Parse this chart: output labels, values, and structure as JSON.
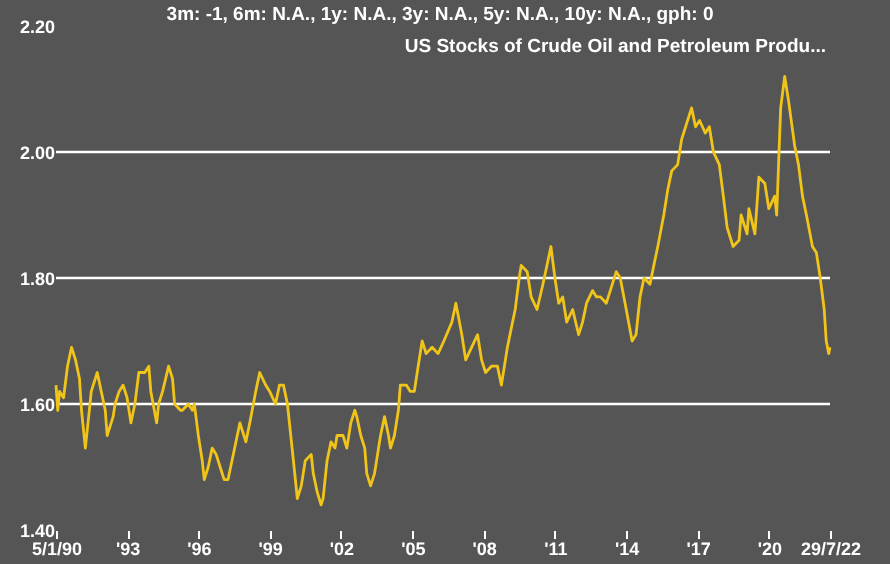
{
  "chart_data": {
    "type": "line",
    "title": "US Stocks of Crude Oil and Petroleum Produ...",
    "annotations": [
      "3m: -1,   6m: N.A.,   1y: N.A.,   3y: N.A.,   5y: N.A.,   10y: N.A.,   gph: 0"
    ],
    "xlim": [
      "1990-01-05",
      "2022-07-29"
    ],
    "xticks": [
      {
        "value": "1990-01-05",
        "label": "5/1/90"
      },
      {
        "value": "1993-01-01",
        "label": "'93"
      },
      {
        "value": "1996-01-01",
        "label": "'96"
      },
      {
        "value": "1999-01-01",
        "label": "'99"
      },
      {
        "value": "2002-01-01",
        "label": "'02"
      },
      {
        "value": "2005-01-01",
        "label": "'05"
      },
      {
        "value": "2008-01-01",
        "label": "'08"
      },
      {
        "value": "2011-01-01",
        "label": "'11"
      },
      {
        "value": "2014-01-01",
        "label": "'14"
      },
      {
        "value": "2017-01-01",
        "label": "'17"
      },
      {
        "value": "2020-01-01",
        "label": "'20"
      },
      {
        "value": "2022-07-29",
        "label": "29/7/22"
      }
    ],
    "ylim": [
      1.4,
      2.2
    ],
    "yticks": [
      {
        "value": 1.4,
        "label": "1.40"
      },
      {
        "value": 1.6,
        "label": "1.60"
      },
      {
        "value": 1.8,
        "label": "1.80"
      },
      {
        "value": 2.0,
        "label": "2.00"
      },
      {
        "value": 2.2,
        "label": "2.20"
      }
    ],
    "grid": "y",
    "series": [
      {
        "color": "#f0c419",
        "x": [
          "1990-01-05",
          "1990-02",
          "1990-03",
          "1990-05",
          "1990-07",
          "1990-09",
          "1990-11",
          "1991-01",
          "1991-02",
          "1991-04",
          "1991-06",
          "1991-07",
          "1991-10",
          "1991-12",
          "1992-02",
          "1992-03",
          "1992-06",
          "1992-07",
          "1992-09",
          "1992-11",
          "1993-01",
          "1993-03",
          "1993-05",
          "1993-07",
          "1993-08",
          "1993-10",
          "1993-12",
          "1994-01",
          "1994-04",
          "1994-05",
          "1994-07",
          "1994-10",
          "1994-12",
          "1995-01",
          "1995-04",
          "1995-05",
          "1995-08",
          "1995-10",
          "1995-11",
          "1996-01",
          "1996-03",
          "1996-04",
          "1996-06",
          "1996-08",
          "1996-10",
          "1996-12",
          "1997-02",
          "1997-04",
          "1997-06",
          "1997-08",
          "1997-10",
          "1997-12",
          "1998-01",
          "1998-03",
          "1998-06",
          "1998-08",
          "1998-11",
          "1999-01",
          "1999-04",
          "1999-06",
          "1999-08",
          "1999-10",
          "2000-01",
          "2000-03",
          "2000-05",
          "2000-07",
          "2000-10",
          "2000-11",
          "2001-01",
          "2001-03",
          "2001-04",
          "2001-06",
          "2001-08",
          "2001-10",
          "2001-11",
          "2002-02",
          "2002-04",
          "2002-06",
          "2002-08",
          "2002-09",
          "2002-11",
          "2003-01",
          "2003-02",
          "2003-04",
          "2003-06",
          "2003-08",
          "2003-09",
          "2003-11",
          "2004-01",
          "2004-02",
          "2004-04",
          "2004-06",
          "2004-07",
          "2004-10",
          "2004-12",
          "2005-02",
          "2005-04",
          "2005-06",
          "2005-08",
          "2005-11",
          "2006-02",
          "2006-05",
          "2006-09",
          "2006-11",
          "2007-02",
          "2007-04",
          "2007-07",
          "2007-10",
          "2007-12",
          "2008-02",
          "2008-05",
          "2008-08",
          "2008-10",
          "2009-01",
          "2009-03",
          "2009-05",
          "2009-07",
          "2009-08",
          "2009-11",
          "2010-01",
          "2010-04",
          "2010-07",
          "2010-09",
          "2010-11",
          "2011-01",
          "2011-03",
          "2011-05",
          "2011-07",
          "2011-10",
          "2012-01",
          "2012-03",
          "2012-05",
          "2012-08",
          "2012-10",
          "2012-12",
          "2013-03",
          "2013-05",
          "2013-08",
          "2013-10",
          "2014-01",
          "2014-04",
          "2014-06",
          "2014-08",
          "2014-10",
          "2015-01",
          "2015-03",
          "2015-05",
          "2015-08",
          "2015-10",
          "2015-12",
          "2016-03",
          "2016-05",
          "2016-07",
          "2016-10",
          "2016-12",
          "2017-02",
          "2017-05",
          "2017-07",
          "2017-09",
          "2017-12",
          "2018-02",
          "2018-04",
          "2018-07",
          "2018-10",
          "2018-11",
          "2019-02",
          "2019-03",
          "2019-06",
          "2019-08",
          "2019-11",
          "2020-01",
          "2020-04",
          "2020-05",
          "2020-07",
          "2020-09",
          "2020-11",
          "2021-02",
          "2021-04",
          "2021-06",
          "2021-08",
          "2021-11",
          "2022-01",
          "2022-03",
          "2022-05",
          "2022-06",
          "2022-07-10",
          "2022-07-29"
        ],
        "values": [
          1.63,
          1.59,
          1.62,
          1.61,
          1.66,
          1.69,
          1.67,
          1.64,
          1.59,
          1.53,
          1.59,
          1.62,
          1.65,
          1.62,
          1.59,
          1.55,
          1.58,
          1.6,
          1.62,
          1.63,
          1.61,
          1.57,
          1.6,
          1.65,
          1.65,
          1.65,
          1.66,
          1.62,
          1.57,
          1.6,
          1.62,
          1.66,
          1.64,
          1.6,
          1.59,
          1.59,
          1.6,
          1.59,
          1.6,
          1.55,
          1.51,
          1.48,
          1.5,
          1.53,
          1.52,
          1.5,
          1.48,
          1.48,
          1.51,
          1.54,
          1.57,
          1.55,
          1.54,
          1.57,
          1.62,
          1.65,
          1.63,
          1.62,
          1.6,
          1.63,
          1.63,
          1.6,
          1.51,
          1.45,
          1.47,
          1.51,
          1.52,
          1.49,
          1.46,
          1.44,
          1.45,
          1.51,
          1.54,
          1.53,
          1.55,
          1.55,
          1.53,
          1.57,
          1.59,
          1.58,
          1.55,
          1.53,
          1.49,
          1.47,
          1.49,
          1.53,
          1.55,
          1.58,
          1.55,
          1.53,
          1.55,
          1.59,
          1.63,
          1.63,
          1.62,
          1.62,
          1.66,
          1.7,
          1.68,
          1.69,
          1.68,
          1.7,
          1.73,
          1.76,
          1.71,
          1.67,
          1.69,
          1.71,
          1.67,
          1.65,
          1.66,
          1.66,
          1.63,
          1.69,
          1.72,
          1.75,
          1.8,
          1.82,
          1.81,
          1.77,
          1.75,
          1.79,
          1.82,
          1.85,
          1.8,
          1.76,
          1.77,
          1.73,
          1.75,
          1.71,
          1.73,
          1.76,
          1.78,
          1.77,
          1.77,
          1.76,
          1.78,
          1.81,
          1.8,
          1.75,
          1.7,
          1.71,
          1.77,
          1.8,
          1.79,
          1.82,
          1.85,
          1.9,
          1.94,
          1.97,
          1.98,
          2.02,
          2.04,
          2.07,
          2.04,
          2.05,
          2.03,
          2.04,
          2.0,
          1.98,
          1.93,
          1.88,
          1.85,
          1.86,
          1.9,
          1.87,
          1.91,
          1.87,
          1.96,
          1.95,
          1.91,
          1.93,
          1.9,
          2.07,
          2.12,
          2.08,
          2.01,
          1.98,
          1.93,
          1.9,
          1.85,
          1.84,
          1.8,
          1.75,
          1.7,
          1.68,
          1.69
        ]
      }
    ]
  }
}
